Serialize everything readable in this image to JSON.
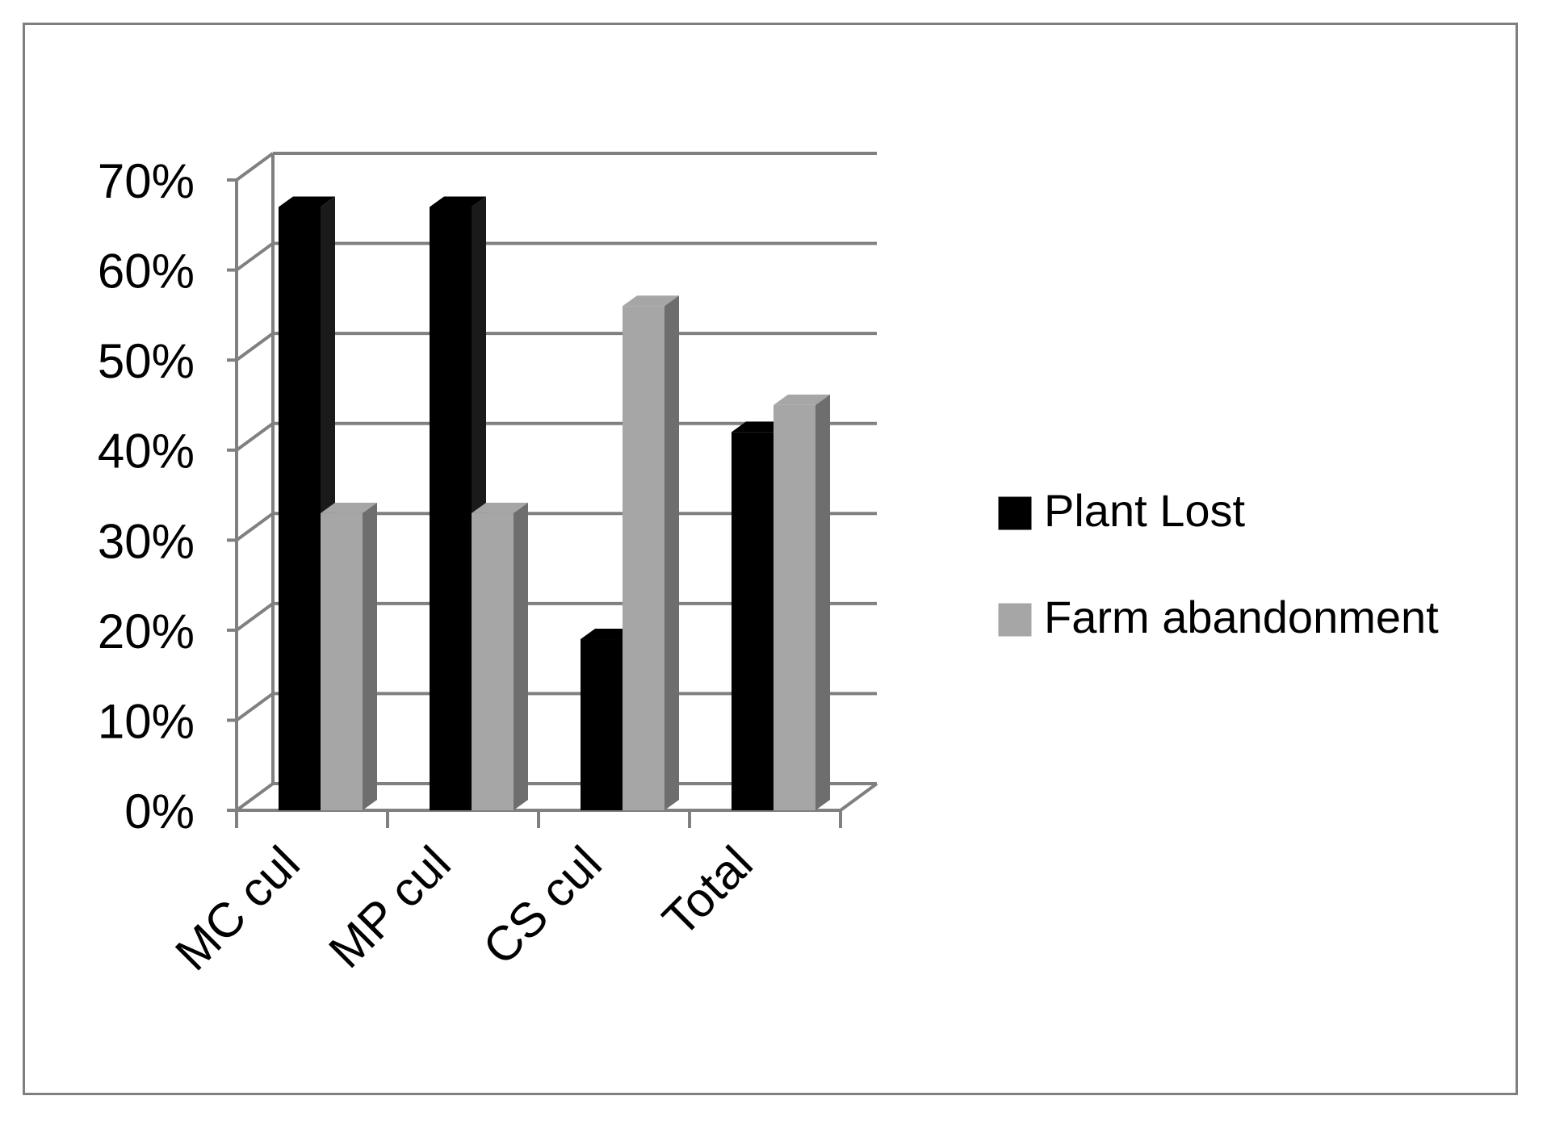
{
  "chart_data": {
    "type": "bar",
    "style": "3d-clustered-column",
    "title": "",
    "xlabel": "",
    "ylabel": "",
    "categories": [
      "MC cul",
      "MP cul",
      "CS cul",
      "Total"
    ],
    "series": [
      {
        "name": "Plant Lost",
        "values": [
          0.67,
          0.67,
          0.19,
          0.42
        ],
        "color": "#000000",
        "side_color": "#1a1a1a"
      },
      {
        "name": "Farm abandonment",
        "values": [
          0.33,
          0.33,
          0.56,
          0.45
        ],
        "color": "#a6a6a6",
        "side_color": "#6e6e6e"
      }
    ],
    "ylim": [
      0,
      0.7
    ],
    "yticks": [
      0,
      0.1,
      0.2,
      0.3,
      0.4,
      0.5,
      0.6,
      0.7
    ],
    "ytick_labels": [
      "0%",
      "10%",
      "20%",
      "30%",
      "40%",
      "50%",
      "60%",
      "70%"
    ],
    "grid": true,
    "gridline_color": "#808080",
    "legend_position": "right"
  }
}
